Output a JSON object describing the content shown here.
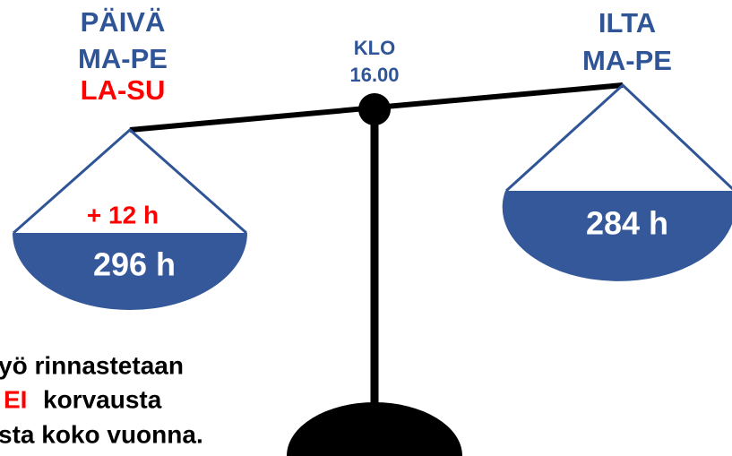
{
  "left": {
    "title": "PÄIVÄ",
    "days": "MA-PE",
    "weekend": "LA-SU",
    "extra": "+ 12 h",
    "hours": "296 h"
  },
  "center": {
    "label": "KLO",
    "time": "16.00"
  },
  "right": {
    "title": "ILTA",
    "days": "MA-PE",
    "hours": "284 h"
  },
  "footer": {
    "line1": "yö rinnastetaan",
    "line2_highlight": "EI",
    "line2_rest": "korvausta",
    "line3": "sta koko vuonna."
  }
}
